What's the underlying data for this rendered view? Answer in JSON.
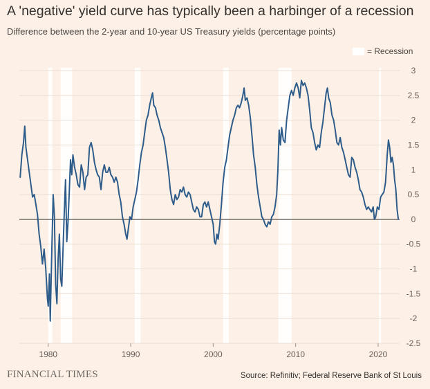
{
  "colors": {
    "background": "#fdf0e6",
    "line": "#2e5c8a",
    "recession": "#ffffff",
    "zero_line": "#7a7570"
  },
  "header": {
    "title": "A 'negative' yield curve has typically been a harbinger of a recession",
    "subtitle": "Difference between the 2-year and 10-year US Treasury yields (percentage points)"
  },
  "legend": {
    "recession_label": "= Recession"
  },
  "footer": {
    "brand": "FINANCIAL TIMES",
    "source": "Source: Refinitiv; Federal Reserve Bank of St Louis"
  },
  "chart_data": {
    "type": "line",
    "title": "A 'negative' yield curve has typically been a harbinger of a recession",
    "subtitle": "Difference between the 2-year and 10-year US Treasury yields (percentage points)",
    "xlabel": "",
    "ylabel": "",
    "xlim": [
      1976.5,
      2022.6
    ],
    "ylim": [
      -2.5,
      3
    ],
    "x_ticks": [
      1980,
      1990,
      2000,
      2010,
      2020
    ],
    "x_tick_labels": [
      "1980",
      "1990",
      "2000",
      "2010",
      "2020"
    ],
    "y_ticks": [
      3,
      2.5,
      2,
      1.5,
      1,
      0.5,
      0,
      -0.5,
      -1,
      -1.5,
      -2,
      -2.5
    ],
    "y_tick_labels": [
      "3",
      "2.5",
      "2",
      "1.5",
      "1",
      "0.5",
      "0",
      "-0.5",
      "-1",
      "-1.5",
      "-2",
      "-2.5"
    ],
    "grid": "horizontal",
    "legend_position": "top-right",
    "recessions": [
      [
        1980.0,
        1980.5
      ],
      [
        1981.5,
        1982.9
      ],
      [
        1990.5,
        1991.2
      ],
      [
        2001.2,
        2001.9
      ],
      [
        2007.9,
        2009.5
      ],
      [
        2020.1,
        2020.35
      ]
    ],
    "series": [
      {
        "points": [
          [
            1976.6,
            0.85
          ],
          [
            1976.8,
            1.3
          ],
          [
            1977.0,
            1.55
          ],
          [
            1977.15,
            1.88
          ],
          [
            1977.3,
            1.45
          ],
          [
            1977.5,
            1.2
          ],
          [
            1977.7,
            0.95
          ],
          [
            1977.9,
            0.7
          ],
          [
            1978.1,
            0.45
          ],
          [
            1978.3,
            0.5
          ],
          [
            1978.5,
            0.3
          ],
          [
            1978.7,
            0.1
          ],
          [
            1978.9,
            -0.3
          ],
          [
            1979.1,
            -0.55
          ],
          [
            1979.3,
            -0.9
          ],
          [
            1979.5,
            -0.6
          ],
          [
            1979.7,
            -1.0
          ],
          [
            1979.9,
            -1.6
          ],
          [
            1980.0,
            -1.75
          ],
          [
            1980.15,
            -1.1
          ],
          [
            1980.25,
            -2.05
          ],
          [
            1980.4,
            -0.9
          ],
          [
            1980.5,
            -0.2
          ],
          [
            1980.6,
            0.5
          ],
          [
            1980.75,
            0.05
          ],
          [
            1980.9,
            -1.3
          ],
          [
            1981.05,
            -1.7
          ],
          [
            1981.2,
            -0.8
          ],
          [
            1981.35,
            -0.3
          ],
          [
            1981.5,
            -1.2
          ],
          [
            1981.65,
            -1.35
          ],
          [
            1981.8,
            -0.6
          ],
          [
            1981.95,
            0.15
          ],
          [
            1982.1,
            0.8
          ],
          [
            1982.25,
            -0.45
          ],
          [
            1982.4,
            -0.05
          ],
          [
            1982.55,
            0.55
          ],
          [
            1982.7,
            1.2
          ],
          [
            1982.85,
            0.9
          ],
          [
            1983.0,
            1.3
          ],
          [
            1983.2,
            1.05
          ],
          [
            1983.4,
            0.9
          ],
          [
            1983.6,
            0.7
          ],
          [
            1983.8,
            0.65
          ],
          [
            1984.0,
            1.1
          ],
          [
            1984.2,
            0.95
          ],
          [
            1984.4,
            0.6
          ],
          [
            1984.6,
            0.85
          ],
          [
            1984.8,
            0.9
          ],
          [
            1985.0,
            1.45
          ],
          [
            1985.2,
            1.55
          ],
          [
            1985.4,
            1.4
          ],
          [
            1985.6,
            1.15
          ],
          [
            1985.8,
            1.0
          ],
          [
            1986.0,
            0.9
          ],
          [
            1986.2,
            0.85
          ],
          [
            1986.4,
            0.6
          ],
          [
            1986.6,
            0.95
          ],
          [
            1986.8,
            1.1
          ],
          [
            1987.0,
            0.95
          ],
          [
            1987.2,
            0.95
          ],
          [
            1987.4,
            1.05
          ],
          [
            1987.6,
            0.9
          ],
          [
            1987.8,
            0.85
          ],
          [
            1988.0,
            0.75
          ],
          [
            1988.2,
            0.85
          ],
          [
            1988.4,
            0.75
          ],
          [
            1988.6,
            0.5
          ],
          [
            1988.8,
            0.35
          ],
          [
            1989.0,
            0.05
          ],
          [
            1989.2,
            -0.1
          ],
          [
            1989.4,
            -0.3
          ],
          [
            1989.55,
            -0.4
          ],
          [
            1989.7,
            -0.2
          ],
          [
            1989.9,
            0.05
          ],
          [
            1990.1,
            0.0
          ],
          [
            1990.3,
            0.25
          ],
          [
            1990.5,
            0.4
          ],
          [
            1990.7,
            0.55
          ],
          [
            1990.9,
            0.8
          ],
          [
            1991.1,
            1.1
          ],
          [
            1991.3,
            1.35
          ],
          [
            1991.5,
            1.5
          ],
          [
            1991.7,
            1.75
          ],
          [
            1991.9,
            2.0
          ],
          [
            1992.1,
            2.1
          ],
          [
            1992.3,
            2.3
          ],
          [
            1992.5,
            2.45
          ],
          [
            1992.65,
            2.55
          ],
          [
            1992.8,
            2.3
          ],
          [
            1993.0,
            2.25
          ],
          [
            1993.2,
            2.1
          ],
          [
            1993.4,
            2.0
          ],
          [
            1993.6,
            1.85
          ],
          [
            1993.8,
            1.75
          ],
          [
            1994.0,
            1.65
          ],
          [
            1994.2,
            1.45
          ],
          [
            1994.4,
            1.2
          ],
          [
            1994.6,
            0.95
          ],
          [
            1994.8,
            0.6
          ],
          [
            1995.0,
            0.4
          ],
          [
            1995.2,
            0.3
          ],
          [
            1995.4,
            0.5
          ],
          [
            1995.6,
            0.4
          ],
          [
            1995.8,
            0.45
          ],
          [
            1996.0,
            0.6
          ],
          [
            1996.2,
            0.55
          ],
          [
            1996.4,
            0.65
          ],
          [
            1996.6,
            0.5
          ],
          [
            1996.8,
            0.45
          ],
          [
            1997.0,
            0.55
          ],
          [
            1997.2,
            0.5
          ],
          [
            1997.4,
            0.35
          ],
          [
            1997.6,
            0.2
          ],
          [
            1997.8,
            0.15
          ],
          [
            1998.0,
            0.25
          ],
          [
            1998.2,
            0.2
          ],
          [
            1998.4,
            0.05
          ],
          [
            1998.6,
            0.05
          ],
          [
            1998.8,
            0.3
          ],
          [
            1999.0,
            0.35
          ],
          [
            1999.2,
            0.25
          ],
          [
            1999.4,
            0.35
          ],
          [
            1999.6,
            0.2
          ],
          [
            1999.8,
            0.05
          ],
          [
            2000.0,
            -0.1
          ],
          [
            2000.15,
            -0.45
          ],
          [
            2000.3,
            -0.5
          ],
          [
            2000.45,
            -0.3
          ],
          [
            2000.6,
            -0.4
          ],
          [
            2000.8,
            -0.1
          ],
          [
            2001.0,
            0.3
          ],
          [
            2001.2,
            0.75
          ],
          [
            2001.4,
            1.05
          ],
          [
            2001.6,
            1.2
          ],
          [
            2001.8,
            1.45
          ],
          [
            2002.0,
            1.7
          ],
          [
            2002.2,
            1.85
          ],
          [
            2002.4,
            2.0
          ],
          [
            2002.6,
            2.1
          ],
          [
            2002.8,
            2.25
          ],
          [
            2003.0,
            2.3
          ],
          [
            2003.2,
            2.25
          ],
          [
            2003.4,
            2.35
          ],
          [
            2003.6,
            2.5
          ],
          [
            2003.75,
            2.65
          ],
          [
            2003.9,
            2.4
          ],
          [
            2004.1,
            2.45
          ],
          [
            2004.3,
            2.3
          ],
          [
            2004.5,
            2.05
          ],
          [
            2004.7,
            1.7
          ],
          [
            2004.9,
            1.3
          ],
          [
            2005.1,
            1.05
          ],
          [
            2005.3,
            0.7
          ],
          [
            2005.5,
            0.45
          ],
          [
            2005.7,
            0.25
          ],
          [
            2005.9,
            0.05
          ],
          [
            2006.1,
            0.0
          ],
          [
            2006.3,
            -0.1
          ],
          [
            2006.5,
            -0.15
          ],
          [
            2006.7,
            -0.05
          ],
          [
            2006.9,
            -0.1
          ],
          [
            2007.1,
            0.05
          ],
          [
            2007.3,
            0.1
          ],
          [
            2007.5,
            0.25
          ],
          [
            2007.7,
            0.5
          ],
          [
            2007.85,
            1.0
          ],
          [
            2008.0,
            1.8
          ],
          [
            2008.15,
            1.5
          ],
          [
            2008.3,
            1.85
          ],
          [
            2008.5,
            1.6
          ],
          [
            2008.7,
            1.55
          ],
          [
            2008.9,
            2.0
          ],
          [
            2009.1,
            2.25
          ],
          [
            2009.3,
            2.5
          ],
          [
            2009.5,
            2.6
          ],
          [
            2009.7,
            2.5
          ],
          [
            2009.9,
            2.65
          ],
          [
            2010.1,
            2.75
          ],
          [
            2010.3,
            2.65
          ],
          [
            2010.5,
            2.45
          ],
          [
            2010.7,
            2.8
          ],
          [
            2010.9,
            2.7
          ],
          [
            2011.1,
            2.75
          ],
          [
            2011.3,
            2.65
          ],
          [
            2011.5,
            2.5
          ],
          [
            2011.7,
            2.2
          ],
          [
            2011.9,
            1.85
          ],
          [
            2012.1,
            1.75
          ],
          [
            2012.3,
            1.55
          ],
          [
            2012.5,
            1.4
          ],
          [
            2012.7,
            1.5
          ],
          [
            2012.9,
            1.45
          ],
          [
            2013.1,
            1.75
          ],
          [
            2013.3,
            1.95
          ],
          [
            2013.5,
            2.25
          ],
          [
            2013.7,
            2.55
          ],
          [
            2013.85,
            2.65
          ],
          [
            2014.0,
            2.45
          ],
          [
            2014.2,
            2.35
          ],
          [
            2014.4,
            2.1
          ],
          [
            2014.6,
            2.0
          ],
          [
            2014.8,
            1.8
          ],
          [
            2015.0,
            1.55
          ],
          [
            2015.2,
            1.5
          ],
          [
            2015.4,
            1.65
          ],
          [
            2015.6,
            1.45
          ],
          [
            2015.8,
            1.35
          ],
          [
            2016.0,
            1.2
          ],
          [
            2016.2,
            1.05
          ],
          [
            2016.4,
            0.9
          ],
          [
            2016.6,
            0.85
          ],
          [
            2016.8,
            1.25
          ],
          [
            2017.0,
            1.2
          ],
          [
            2017.2,
            1.05
          ],
          [
            2017.4,
            0.95
          ],
          [
            2017.6,
            0.8
          ],
          [
            2017.8,
            0.6
          ],
          [
            2018.0,
            0.55
          ],
          [
            2018.2,
            0.45
          ],
          [
            2018.4,
            0.3
          ],
          [
            2018.6,
            0.2
          ],
          [
            2018.8,
            0.25
          ],
          [
            2019.0,
            0.2
          ],
          [
            2019.2,
            0.15
          ],
          [
            2019.4,
            0.25
          ],
          [
            2019.55,
            0.0
          ],
          [
            2019.7,
            0.05
          ],
          [
            2019.9,
            0.25
          ],
          [
            2020.1,
            0.2
          ],
          [
            2020.3,
            0.45
          ],
          [
            2020.5,
            0.5
          ],
          [
            2020.7,
            0.55
          ],
          [
            2020.9,
            0.75
          ],
          [
            2021.1,
            1.3
          ],
          [
            2021.25,
            1.6
          ],
          [
            2021.4,
            1.45
          ],
          [
            2021.55,
            1.15
          ],
          [
            2021.7,
            1.25
          ],
          [
            2021.85,
            1.1
          ],
          [
            2022.0,
            0.8
          ],
          [
            2022.15,
            0.6
          ],
          [
            2022.3,
            0.2
          ],
          [
            2022.45,
            0.0
          ]
        ]
      }
    ]
  }
}
